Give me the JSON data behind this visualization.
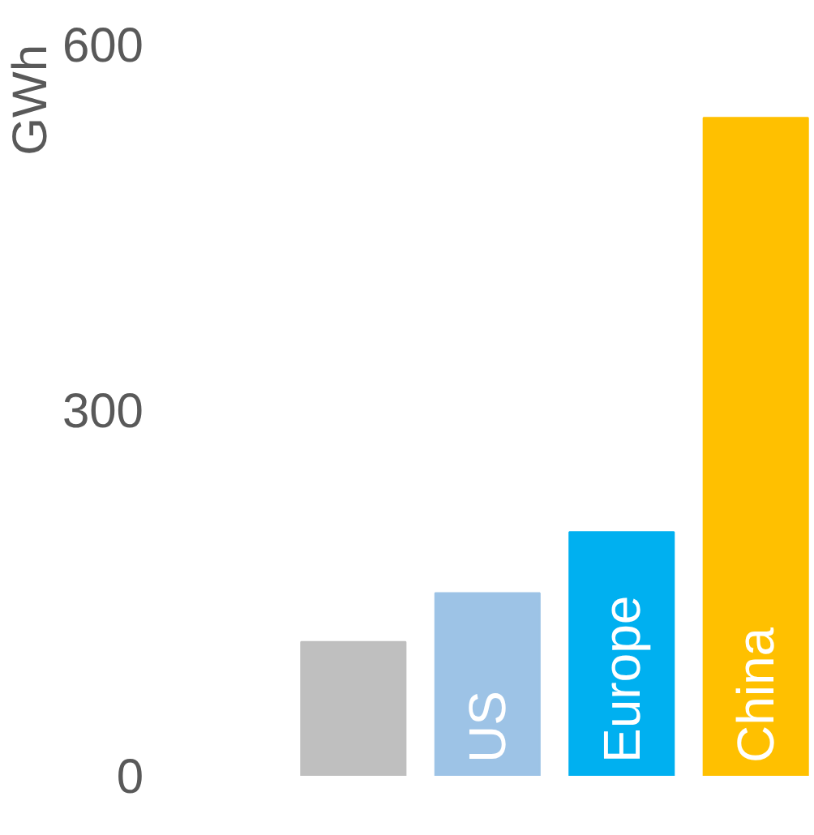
{
  "chart_data": {
    "type": "bar",
    "ylabel": "GWh",
    "categories": [
      null,
      "US",
      "Europe",
      "China"
    ],
    "values": [
      110,
      150,
      200,
      540
    ],
    "colors": [
      "#bfbfbf",
      "#9dc3e6",
      "#00b0f0",
      "#ffc000"
    ],
    "ylim": [
      0,
      600
    ],
    "yticks": [
      0,
      300,
      600
    ],
    "grid": false
  }
}
